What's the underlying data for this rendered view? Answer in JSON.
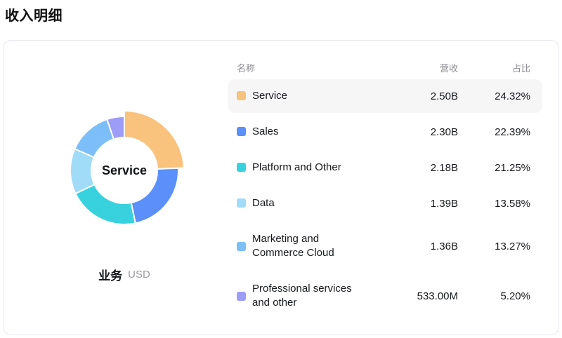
{
  "page": {
    "title": "收入明细"
  },
  "chart": {
    "center_label": "Service",
    "dimension_label": "业务",
    "unit_label": "USD"
  },
  "table": {
    "header": {
      "name": "名称",
      "revenue": "营收",
      "share": "占比"
    }
  },
  "chart_data": {
    "type": "pie",
    "subtype": "donut",
    "title": "收入明细",
    "center_label": "Service",
    "dimension": "业务",
    "unit": "USD",
    "start_angle_deg": 0,
    "direction": "clockwise",
    "highlighted_item": "Service",
    "items": [
      {
        "label": "Service",
        "revenue": "2.50B",
        "share": "24.32%",
        "share_pct": 24.32,
        "color": "#F9C27D",
        "highlighted": true
      },
      {
        "label": "Sales",
        "revenue": "2.30B",
        "share": "22.39%",
        "share_pct": 22.39,
        "color": "#5B8FF9",
        "highlighted": false
      },
      {
        "label": "Platform and Other",
        "revenue": "2.18B",
        "share": "21.25%",
        "share_pct": 21.25,
        "color": "#38D2DE",
        "highlighted": false
      },
      {
        "label": "Data",
        "revenue": "1.39B",
        "share": "13.58%",
        "share_pct": 13.58,
        "color": "#A0DBF8",
        "highlighted": false
      },
      {
        "label": "Marketing and\nCommerce Cloud",
        "revenue": "1.36B",
        "share": "13.27%",
        "share_pct": 13.27,
        "color": "#7CBEF8",
        "highlighted": false
      },
      {
        "label": "Professional services\nand other",
        "revenue": "533.00M",
        "share": "5.20%",
        "share_pct": 5.2,
        "color": "#9D9DF8",
        "highlighted": false
      }
    ]
  }
}
